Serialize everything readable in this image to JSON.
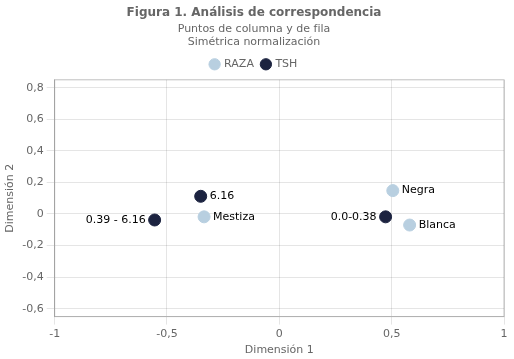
{
  "chart_data": {
    "type": "scatter",
    "title": "Figura 1. Análisis de correspondencia",
    "subtitle": [
      "Puntos de columna y de fila",
      "Simétrica normalización"
    ],
    "xlabel": "Dimensión 1",
    "ylabel": "Dimensión 2",
    "series": [
      {
        "name": "RAZA",
        "color": "#b8cfe0",
        "marker": "circle",
        "x": [
          -0.335,
          0.505,
          0.58
        ],
        "values": [
          -0.018,
          0.148,
          -0.07
        ],
        "point_labels": [
          "Mestiza",
          "Negra",
          "Blanca"
        ]
      },
      {
        "name": "TSH",
        "color": "#1c2340",
        "marker": "circle",
        "x": [
          -0.35,
          -0.555,
          0.473
        ],
        "values": [
          0.112,
          -0.038,
          -0.018
        ],
        "point_labels": [
          "6.16",
          "0.39 - 6.16",
          "0.0-0.38"
        ]
      }
    ],
    "xlim": [
      -1,
      1
    ],
    "ylim": [
      -0.65,
      0.85
    ],
    "xticks": [
      -1,
      {
        "value": -0.5,
        "label": "-0,5"
      },
      0,
      {
        "value": 0.5,
        "label": "0,5"
      },
      1
    ],
    "yticks": [
      {
        "value": -0.6,
        "label": "-0,6"
      },
      {
        "value": -0.4,
        "label": "-0,4"
      },
      {
        "value": -0.2,
        "label": "-0,2"
      },
      0,
      {
        "value": 0.2,
        "label": "0,2"
      },
      {
        "value": 0.4,
        "label": "0,4"
      },
      {
        "value": 0.6,
        "label": "0,6"
      },
      {
        "value": 0.8,
        "label": "0,8"
      }
    ],
    "grid": true,
    "legend": "top"
  }
}
